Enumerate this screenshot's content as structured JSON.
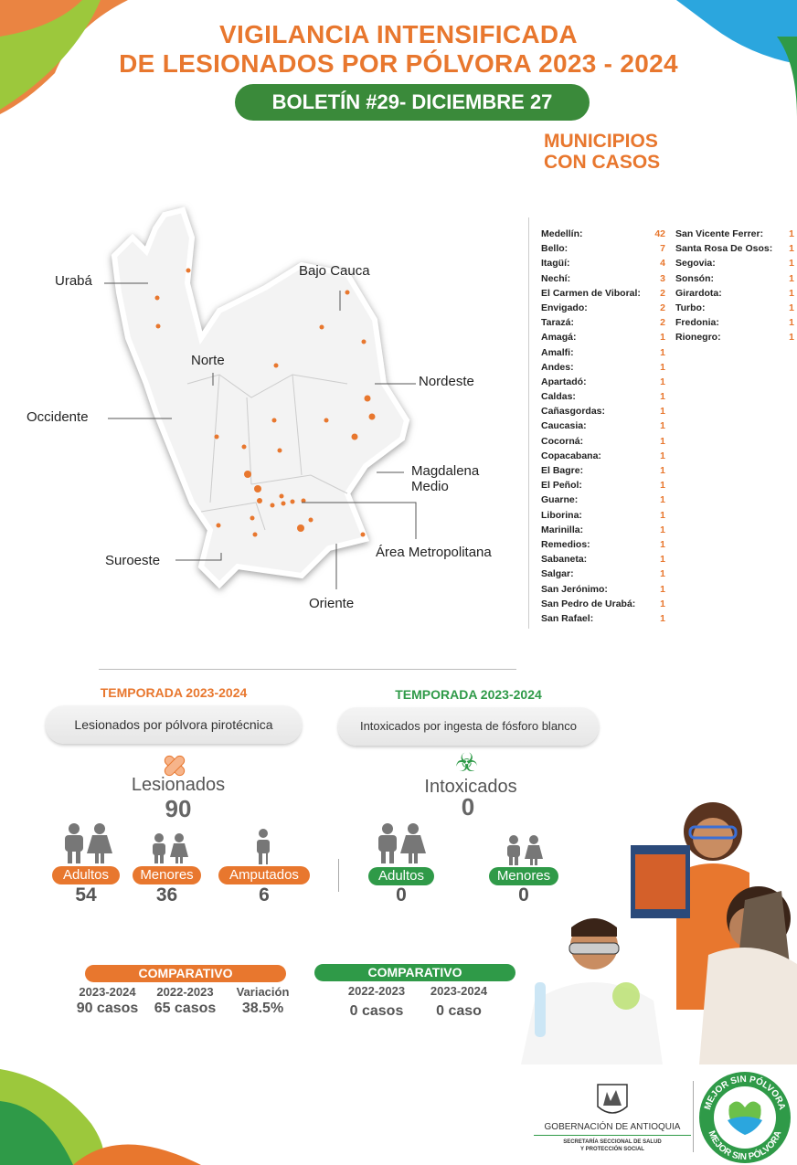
{
  "header": {
    "title_line1": "VIGILANCIA INTENSIFICADA",
    "title_line2": "DE LESIONADOS POR PÓLVORA 2023 - 2024",
    "bulletin": "BOLETÍN #29- DICIEMBRE 27"
  },
  "colors": {
    "orange": "#e8772e",
    "green": "#2f9a48",
    "dark_green": "#3a8a3a",
    "gray": "#666666"
  },
  "municipios": {
    "title_line1": "MUNICIPIOS",
    "title_line2": "CON CASOS",
    "col1": [
      {
        "name": "Medellín:",
        "value": "42"
      },
      {
        "name": "Bello:",
        "value": "7"
      },
      {
        "name": "Itagüí:",
        "value": "4"
      },
      {
        "name": "Nechí:",
        "value": "3"
      },
      {
        "name": "El Carmen de Viboral:",
        "value": "2"
      },
      {
        "name": "Envigado:",
        "value": "2"
      },
      {
        "name": "Tarazá:",
        "value": "2"
      },
      {
        "name": "Amagá:",
        "value": "1"
      },
      {
        "name": "Amalfi:",
        "value": "1"
      },
      {
        "name": "Andes:",
        "value": "1"
      },
      {
        "name": "Apartadó:",
        "value": "1"
      },
      {
        "name": "Caldas:",
        "value": "1"
      },
      {
        "name": "Cañasgordas:",
        "value": "1"
      },
      {
        "name": "Caucasia:",
        "value": "1"
      },
      {
        "name": "Cocorná:",
        "value": "1"
      },
      {
        "name": "Copacabana:",
        "value": "1"
      },
      {
        "name": "El Bagre:",
        "value": "1"
      },
      {
        "name": "El Peñol:",
        "value": "1"
      },
      {
        "name": "Guarne:",
        "value": "1"
      },
      {
        "name": "Liborina:",
        "value": "1"
      },
      {
        "name": "Marinilla:",
        "value": "1"
      },
      {
        "name": "Remedios:",
        "value": "1"
      },
      {
        "name": "Sabaneta:",
        "value": "1"
      },
      {
        "name": "Salgar:",
        "value": "1"
      },
      {
        "name": "San Jerónimo:",
        "value": "1"
      },
      {
        "name": "San Pedro de Urabá:",
        "value": "1"
      },
      {
        "name": "San Rafael:",
        "value": "1"
      }
    ],
    "col2": [
      {
        "name": "San Vicente Ferrer:",
        "value": "1"
      },
      {
        "name": "Santa Rosa De Osos:",
        "value": "1"
      },
      {
        "name": "Segovia:",
        "value": "1"
      },
      {
        "name": "Sonsón:",
        "value": "1"
      },
      {
        "name": "Girardota:",
        "value": "1"
      },
      {
        "name": "Turbo:",
        "value": "1"
      },
      {
        "name": "Fredonia:",
        "value": "1"
      },
      {
        "name": "Rionegro:",
        "value": "1"
      }
    ]
  },
  "map": {
    "regions": {
      "uraba": "Urabá",
      "bajo_cauca": "Bajo Cauca",
      "norte": "Norte",
      "nordeste": "Nordeste",
      "occidente": "Occidente",
      "magdalena_medio_1": "Magdalena",
      "magdalena_medio_2": "Medio",
      "suroeste": "Suroeste",
      "area_metropolitana": "Área Metropolitana",
      "oriente": "Oriente"
    }
  },
  "left": {
    "season": "TEMPORADA 2023-2024",
    "subtitle": "Lesionados por pólvora pirotécnica",
    "label": "Lesionados",
    "total": "90",
    "groups": [
      {
        "label": "Adultos",
        "value": "54"
      },
      {
        "label": "Menores",
        "value": "36"
      },
      {
        "label": "Amputados",
        "value": "6"
      }
    ]
  },
  "right": {
    "season": "TEMPORADA 2023-2024",
    "subtitle": "Intoxicados por ingesta de fósforo blanco",
    "label": "Intoxicados",
    "total": "0",
    "groups": [
      {
        "label": "Adultos",
        "value": "0"
      },
      {
        "label": "Menores",
        "value": "0"
      }
    ]
  },
  "comparativo_left": {
    "title": "COMPARATIVO",
    "cols": [
      {
        "label": "2023-2024",
        "value": "90 casos"
      },
      {
        "label": "2022-2023",
        "value": "65 casos"
      },
      {
        "label": "Variación",
        "value": "38.5%"
      }
    ]
  },
  "comparativo_right": {
    "title": "COMPARATIVO",
    "cols": [
      {
        "label": "2022-2023",
        "value": "0 casos"
      },
      {
        "label": "2023-2024",
        "value": "0 caso"
      }
    ]
  },
  "footer": {
    "gov": "GOBERNACIÓN DE ANTIOQUIA",
    "sec1": "SECRETARÍA SECCIONAL DE SALUD",
    "sec2": "Y PROTECCIÓN SOCIAL",
    "badge": "MEJOR SIN PÓLVORA"
  }
}
